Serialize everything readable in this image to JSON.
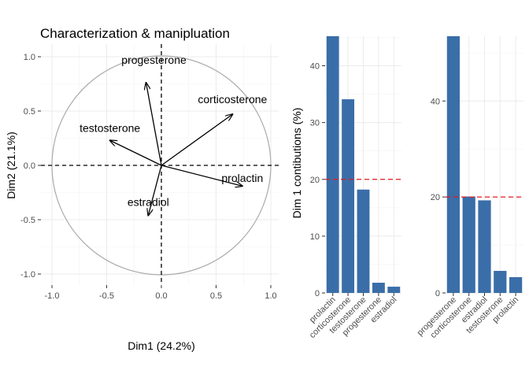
{
  "title": "Characterization & manipluation",
  "chart_data": [
    {
      "type": "scatter",
      "subtype": "pca-correlation-circle",
      "title": "Characterization & manipluation",
      "xlabel": "Dim1 (24.2%)",
      "ylabel": "Dim2 (21.1%)",
      "xlim": [
        -1.0,
        1.0
      ],
      "ylim": [
        -1.0,
        1.0
      ],
      "xticks": [
        "-1.0",
        "-0.5",
        "0.0",
        "0.5",
        "1.0"
      ],
      "yticks": [
        "-1.0",
        "-0.5",
        "0.0",
        "0.5",
        "1.0"
      ],
      "grid": true,
      "circle_color": "#aaaaaa",
      "arrow_color": "#000000",
      "points": [
        {
          "label": "progesterone",
          "x": -0.14,
          "y": 0.76
        },
        {
          "label": "corticosterone",
          "x": 0.65,
          "y": 0.47
        },
        {
          "label": "testosterone",
          "x": -0.47,
          "y": 0.23
        },
        {
          "label": "prolactin",
          "x": 0.74,
          "y": -0.19
        },
        {
          "label": "estradiol",
          "x": -0.12,
          "y": -0.46
        }
      ]
    },
    {
      "type": "bar",
      "xlabel": "",
      "ylabel": "Dim 1 contibutions (%)",
      "categories": [
        "prolactin",
        "corticosterone",
        "testosterone",
        "progesterone",
        "estradiol"
      ],
      "values": [
        45.2,
        34.1,
        18.2,
        1.8,
        1.1
      ],
      "ylim": [
        0,
        45.2
      ],
      "yticks": [
        0,
        10,
        20,
        30,
        40
      ],
      "reference_line": 20,
      "bar_color": "#3a6ea8",
      "ref_color": "#e41a1c"
    },
    {
      "type": "bar",
      "xlabel": "",
      "ylabel": "",
      "categories": [
        "progesterone",
        "corticosterone",
        "estradiol",
        "testosterone",
        "prolactin"
      ],
      "values": [
        53.5,
        20.1,
        19.3,
        4.6,
        3.3
      ],
      "ylim": [
        0,
        53.5
      ],
      "yticks": [
        0,
        20,
        40
      ],
      "reference_line": 20,
      "bar_color": "#3a6ea8",
      "ref_color": "#e41a1c"
    }
  ]
}
